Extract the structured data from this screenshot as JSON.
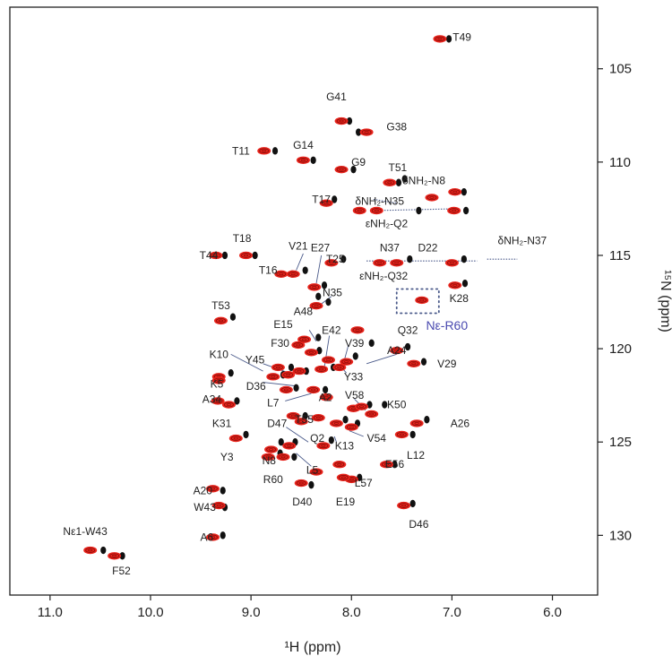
{
  "chart_data": {
    "type": "scatter",
    "xlabel": "¹H (ppm)",
    "ylabel": "¹⁵N (ppm)",
    "xlim": [
      11.4,
      5.55
    ],
    "ylim": [
      133.2,
      101.7
    ],
    "x_ticks": [
      "11.0",
      "10.0",
      "9.0",
      "8.0",
      "7.0",
      "6.0"
    ],
    "x_tick_values": [
      11.0,
      10.0,
      9.0,
      8.0,
      7.0,
      6.0
    ],
    "y_ticks": [
      "105",
      "110",
      "115",
      "120",
      "125",
      "130"
    ],
    "y_tick_values": [
      105,
      110,
      115,
      120,
      125,
      130
    ],
    "grid": false,
    "colors": {
      "red_peaks": "#e8241c",
      "black_peaks": "#111111",
      "guide_lines": "#4a5a8a",
      "special_label": "#4a4ab0"
    },
    "series": [
      {
        "points": [
          [
            7.12,
            103.4
          ],
          [
            8.1,
            107.8
          ],
          [
            7.85,
            108.4
          ],
          [
            8.87,
            109.4
          ],
          [
            8.48,
            109.9
          ],
          [
            8.1,
            110.4
          ],
          [
            7.62,
            111.1
          ],
          [
            7.2,
            111.9
          ],
          [
            6.97,
            111.6
          ],
          [
            8.25,
            112.2
          ],
          [
            7.92,
            112.6
          ],
          [
            7.75,
            112.6
          ],
          [
            6.98,
            112.6
          ],
          [
            7.72,
            115.4
          ],
          [
            7.55,
            115.4
          ],
          [
            7.0,
            115.4
          ],
          [
            8.2,
            115.4
          ],
          [
            8.7,
            116.0
          ],
          [
            8.58,
            116.0
          ],
          [
            8.37,
            116.7
          ],
          [
            9.35,
            115.0
          ],
          [
            9.05,
            115.0
          ],
          [
            9.3,
            118.5
          ],
          [
            7.3,
            117.4
          ],
          [
            6.97,
            116.6
          ],
          [
            8.35,
            117.7
          ],
          [
            8.47,
            119.5
          ],
          [
            8.53,
            119.8
          ],
          [
            8.4,
            120.2
          ],
          [
            8.23,
            120.6
          ],
          [
            8.05,
            120.7
          ],
          [
            7.94,
            119.0
          ],
          [
            7.55,
            120.1
          ],
          [
            7.38,
            120.8
          ],
          [
            8.73,
            121.0
          ],
          [
            8.52,
            121.2
          ],
          [
            8.63,
            121.4
          ],
          [
            8.3,
            121.1
          ],
          [
            8.12,
            121.0
          ],
          [
            9.32,
            121.5
          ],
          [
            9.32,
            121.7
          ],
          [
            8.78,
            121.5
          ],
          [
            8.38,
            122.2
          ],
          [
            8.65,
            122.2
          ],
          [
            9.22,
            123.0
          ],
          [
            9.33,
            122.8
          ],
          [
            8.25,
            122.6
          ],
          [
            7.98,
            123.2
          ],
          [
            7.9,
            123.1
          ],
          [
            7.8,
            123.5
          ],
          [
            8.58,
            123.6
          ],
          [
            8.5,
            123.9
          ],
          [
            8.33,
            123.7
          ],
          [
            8.15,
            124.0
          ],
          [
            8.0,
            124.2
          ],
          [
            7.35,
            124.0
          ],
          [
            9.15,
            124.8
          ],
          [
            8.8,
            125.4
          ],
          [
            8.62,
            125.2
          ],
          [
            8.28,
            125.2
          ],
          [
            7.5,
            124.6
          ],
          [
            8.83,
            125.8
          ],
          [
            8.68,
            125.8
          ],
          [
            8.12,
            126.2
          ],
          [
            8.35,
            126.6
          ],
          [
            8.5,
            127.2
          ],
          [
            8.0,
            127.0
          ],
          [
            9.38,
            127.5
          ],
          [
            9.32,
            128.4
          ],
          [
            7.48,
            128.4
          ],
          [
            9.38,
            130.1
          ],
          [
            10.6,
            130.8
          ],
          [
            10.36,
            131.1
          ],
          [
            7.65,
            126.2
          ],
          [
            8.08,
            126.9
          ]
        ]
      },
      {
        "points": [
          [
            7.03,
            103.4
          ],
          [
            7.93,
            108.4
          ],
          [
            8.76,
            109.4
          ],
          [
            8.38,
            109.9
          ],
          [
            7.98,
            110.4
          ],
          [
            8.02,
            107.8
          ],
          [
            7.53,
            111.1
          ],
          [
            7.47,
            110.9
          ],
          [
            6.88,
            111.6
          ],
          [
            8.17,
            112.0
          ],
          [
            6.86,
            112.6
          ],
          [
            7.33,
            112.6
          ],
          [
            7.42,
            115.2
          ],
          [
            6.88,
            115.2
          ],
          [
            8.08,
            115.2
          ],
          [
            8.59,
            116.0
          ],
          [
            8.46,
            115.8
          ],
          [
            8.27,
            116.6
          ],
          [
            8.33,
            117.2
          ],
          [
            9.26,
            115.0
          ],
          [
            8.96,
            115.0
          ],
          [
            9.18,
            118.3
          ],
          [
            6.87,
            116.5
          ],
          [
            8.23,
            117.5
          ],
          [
            8.33,
            119.4
          ],
          [
            8.32,
            120.1
          ],
          [
            7.96,
            120.4
          ],
          [
            7.8,
            119.7
          ],
          [
            7.44,
            119.9
          ],
          [
            7.28,
            120.7
          ],
          [
            8.6,
            121.0
          ],
          [
            8.45,
            121.2
          ],
          [
            8.18,
            121.0
          ],
          [
            9.2,
            121.3
          ],
          [
            8.68,
            121.4
          ],
          [
            8.26,
            122.2
          ],
          [
            8.55,
            122.1
          ],
          [
            9.14,
            122.8
          ],
          [
            7.82,
            123.0
          ],
          [
            7.67,
            123.0
          ],
          [
            8.46,
            123.6
          ],
          [
            8.06,
            123.8
          ],
          [
            7.94,
            124.0
          ],
          [
            7.25,
            123.8
          ],
          [
            7.39,
            124.6
          ],
          [
            9.05,
            124.6
          ],
          [
            8.7,
            125.0
          ],
          [
            8.56,
            125.0
          ],
          [
            8.2,
            124.9
          ],
          [
            8.71,
            125.6
          ],
          [
            8.57,
            125.8
          ],
          [
            7.57,
            126.2
          ],
          [
            8.4,
            127.3
          ],
          [
            7.92,
            126.9
          ],
          [
            9.28,
            127.6
          ],
          [
            9.26,
            128.5
          ],
          [
            7.39,
            128.3
          ],
          [
            9.28,
            130.0
          ],
          [
            10.47,
            130.8
          ],
          [
            10.28,
            131.1
          ]
        ]
      }
    ],
    "labels": [
      {
        "text": "T49",
        "x": 6.9,
        "y": 103.3
      },
      {
        "text": "G41",
        "x": 8.15,
        "y": 106.5
      },
      {
        "text": "G38",
        "x": 7.55,
        "y": 108.1
      },
      {
        "text": "G14",
        "x": 8.48,
        "y": 109.1
      },
      {
        "text": "T11",
        "x": 9.1,
        "y": 109.4
      },
      {
        "text": "G9",
        "x": 7.93,
        "y": 110.0
      },
      {
        "text": "T51",
        "x": 7.54,
        "y": 110.3
      },
      {
        "text": "δNH₂-N8",
        "x": 7.28,
        "y": 111.0
      },
      {
        "text": "T17",
        "x": 8.3,
        "y": 112.0
      },
      {
        "text": "δNH₂-N35",
        "x": 7.72,
        "y": 112.1
      },
      {
        "text": "εNH₂-Q2",
        "x": 7.65,
        "y": 113.3
      },
      {
        "text": "N37",
        "x": 7.62,
        "y": 114.6
      },
      {
        "text": "D22",
        "x": 7.24,
        "y": 114.6
      },
      {
        "text": "δNH₂-N37",
        "x": 6.3,
        "y": 114.2
      },
      {
        "text": "T18",
        "x": 9.09,
        "y": 114.1
      },
      {
        "text": "V21",
        "x": 8.53,
        "y": 114.5
      },
      {
        "text": "E27",
        "x": 8.31,
        "y": 114.6
      },
      {
        "text": "T44",
        "x": 9.42,
        "y": 115.0
      },
      {
        "text": "T25",
        "x": 8.16,
        "y": 115.2
      },
      {
        "text": "T16",
        "x": 8.83,
        "y": 115.8
      },
      {
        "text": "εNH₂-Q32",
        "x": 7.68,
        "y": 116.1
      },
      {
        "text": "N35",
        "x": 8.19,
        "y": 117.0
      },
      {
        "text": "K28",
        "x": 6.93,
        "y": 117.3
      },
      {
        "text": "T53",
        "x": 9.3,
        "y": 117.7
      },
      {
        "text": "A48",
        "x": 8.48,
        "y": 118.0
      },
      {
        "text": "Q32",
        "x": 7.44,
        "y": 119.0
      },
      {
        "text": "Nε-R60",
        "x": 7.05,
        "y": 118.8
      },
      {
        "text": "E15",
        "x": 8.68,
        "y": 118.7
      },
      {
        "text": "E42",
        "x": 8.2,
        "y": 119.0
      },
      {
        "text": "V39",
        "x": 7.97,
        "y": 119.7
      },
      {
        "text": "F30",
        "x": 8.71,
        "y": 119.7
      },
      {
        "text": "K10",
        "x": 9.32,
        "y": 120.3
      },
      {
        "text": "A24",
        "x": 7.55,
        "y": 120.1
      },
      {
        "text": "Y45",
        "x": 8.96,
        "y": 120.6
      },
      {
        "text": "Y33",
        "x": 7.98,
        "y": 121.5
      },
      {
        "text": "V29",
        "x": 7.05,
        "y": 120.8
      },
      {
        "text": "K5",
        "x": 9.34,
        "y": 121.9
      },
      {
        "text": "D36",
        "x": 8.95,
        "y": 122.0
      },
      {
        "text": "L7",
        "x": 8.78,
        "y": 122.9
      },
      {
        "text": "A2",
        "x": 8.26,
        "y": 122.6
      },
      {
        "text": "V58",
        "x": 7.97,
        "y": 122.5
      },
      {
        "text": "A34",
        "x": 9.39,
        "y": 122.7
      },
      {
        "text": "K50",
        "x": 7.55,
        "y": 123.0
      },
      {
        "text": "D47",
        "x": 8.74,
        "y": 124.0
      },
      {
        "text": "T55",
        "x": 8.47,
        "y": 123.8
      },
      {
        "text": "A26",
        "x": 6.92,
        "y": 124.0
      },
      {
        "text": "K31",
        "x": 9.29,
        "y": 124.0
      },
      {
        "text": "Q2",
        "x": 8.34,
        "y": 124.8
      },
      {
        "text": "K13",
        "x": 8.07,
        "y": 125.2
      },
      {
        "text": "V54",
        "x": 7.75,
        "y": 124.8
      },
      {
        "text": "L12",
        "x": 7.36,
        "y": 125.7
      },
      {
        "text": "Y3",
        "x": 9.24,
        "y": 125.8
      },
      {
        "text": "N8",
        "x": 8.82,
        "y": 126.0
      },
      {
        "text": "L5",
        "x": 8.39,
        "y": 126.5
      },
      {
        "text": "E56",
        "x": 7.57,
        "y": 126.2
      },
      {
        "text": "R60",
        "x": 8.78,
        "y": 127.0
      },
      {
        "text": "L57",
        "x": 7.88,
        "y": 127.2
      },
      {
        "text": "A20",
        "x": 9.48,
        "y": 127.6
      },
      {
        "text": "D40",
        "x": 8.49,
        "y": 128.2
      },
      {
        "text": "E19",
        "x": 8.06,
        "y": 128.2
      },
      {
        "text": "W43",
        "x": 9.46,
        "y": 128.5
      },
      {
        "text": "D46",
        "x": 7.33,
        "y": 129.4
      },
      {
        "text": "Nε1-W43",
        "x": 10.65,
        "y": 129.8
      },
      {
        "text": "A6",
        "x": 9.44,
        "y": 130.1
      },
      {
        "text": "F52",
        "x": 10.29,
        "y": 131.9
      }
    ],
    "guide_lines": [
      [
        [
          7.78,
          112.0
        ],
        [
          7.55,
          112.2
        ]
      ],
      [
        [
          7.78,
          112.6
        ],
        [
          6.95,
          112.5
        ]
      ],
      [
        [
          7.85,
          115.3
        ],
        [
          6.75,
          115.3
        ]
      ],
      [
        [
          6.65,
          115.2
        ],
        [
          6.35,
          115.2
        ]
      ]
    ],
    "leader_lines": [
      [
        [
          8.48,
          114.9
        ],
        [
          8.55,
          115.8
        ]
      ],
      [
        [
          8.3,
          115.0
        ],
        [
          8.35,
          116.5
        ]
      ],
      [
        [
          8.2,
          117.2
        ],
        [
          8.3,
          117.6
        ]
      ],
      [
        [
          8.42,
          119.0
        ],
        [
          8.35,
          119.6
        ]
      ],
      [
        [
          8.22,
          119.3
        ],
        [
          8.27,
          121.0
        ]
      ],
      [
        [
          8.03,
          119.8
        ],
        [
          8.08,
          120.8
        ]
      ],
      [
        [
          7.55,
          120.3
        ],
        [
          7.85,
          120.8
        ]
      ],
      [
        [
          9.2,
          120.3
        ],
        [
          8.88,
          121.2
        ]
      ],
      [
        [
          8.88,
          120.8
        ],
        [
          8.62,
          121.3
        ]
      ],
      [
        [
          8.88,
          121.8
        ],
        [
          8.55,
          122.0
        ]
      ],
      [
        [
          8.66,
          122.8
        ],
        [
          8.4,
          122.4
        ]
      ],
      [
        [
          8.05,
          121.3
        ],
        [
          8.1,
          121.0
        ]
      ],
      [
        [
          7.97,
          122.7
        ],
        [
          7.86,
          123.3
        ]
      ],
      [
        [
          8.44,
          123.6
        ],
        [
          8.4,
          123.8
        ]
      ],
      [
        [
          8.65,
          124.2
        ],
        [
          8.43,
          125.0
        ]
      ],
      [
        [
          7.88,
          124.7
        ],
        [
          8.02,
          124.4
        ]
      ],
      [
        [
          8.15,
          125.0
        ],
        [
          8.17,
          124.7
        ]
      ],
      [
        [
          8.4,
          126.3
        ],
        [
          8.55,
          125.6
        ]
      ]
    ],
    "dotted_box": {
      "x": [
        7.55,
        7.13
      ],
      "y": [
        116.8,
        118.1
      ]
    }
  }
}
